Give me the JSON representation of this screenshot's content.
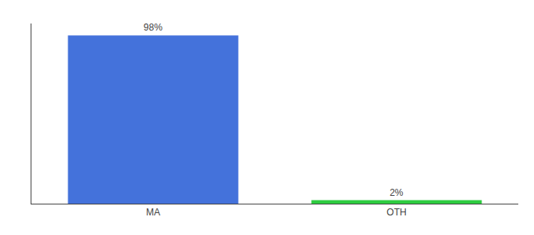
{
  "chart_data": {
    "type": "bar",
    "categories": [
      "MA",
      "OTH"
    ],
    "values": [
      98,
      2
    ],
    "value_labels": [
      "98%",
      "2%"
    ],
    "colors": [
      "#4472db",
      "#2ecc40"
    ],
    "ylim": [
      0,
      105
    ],
    "yticks": [],
    "data_labels": true,
    "tick_labels": "x",
    "grid": false
  }
}
